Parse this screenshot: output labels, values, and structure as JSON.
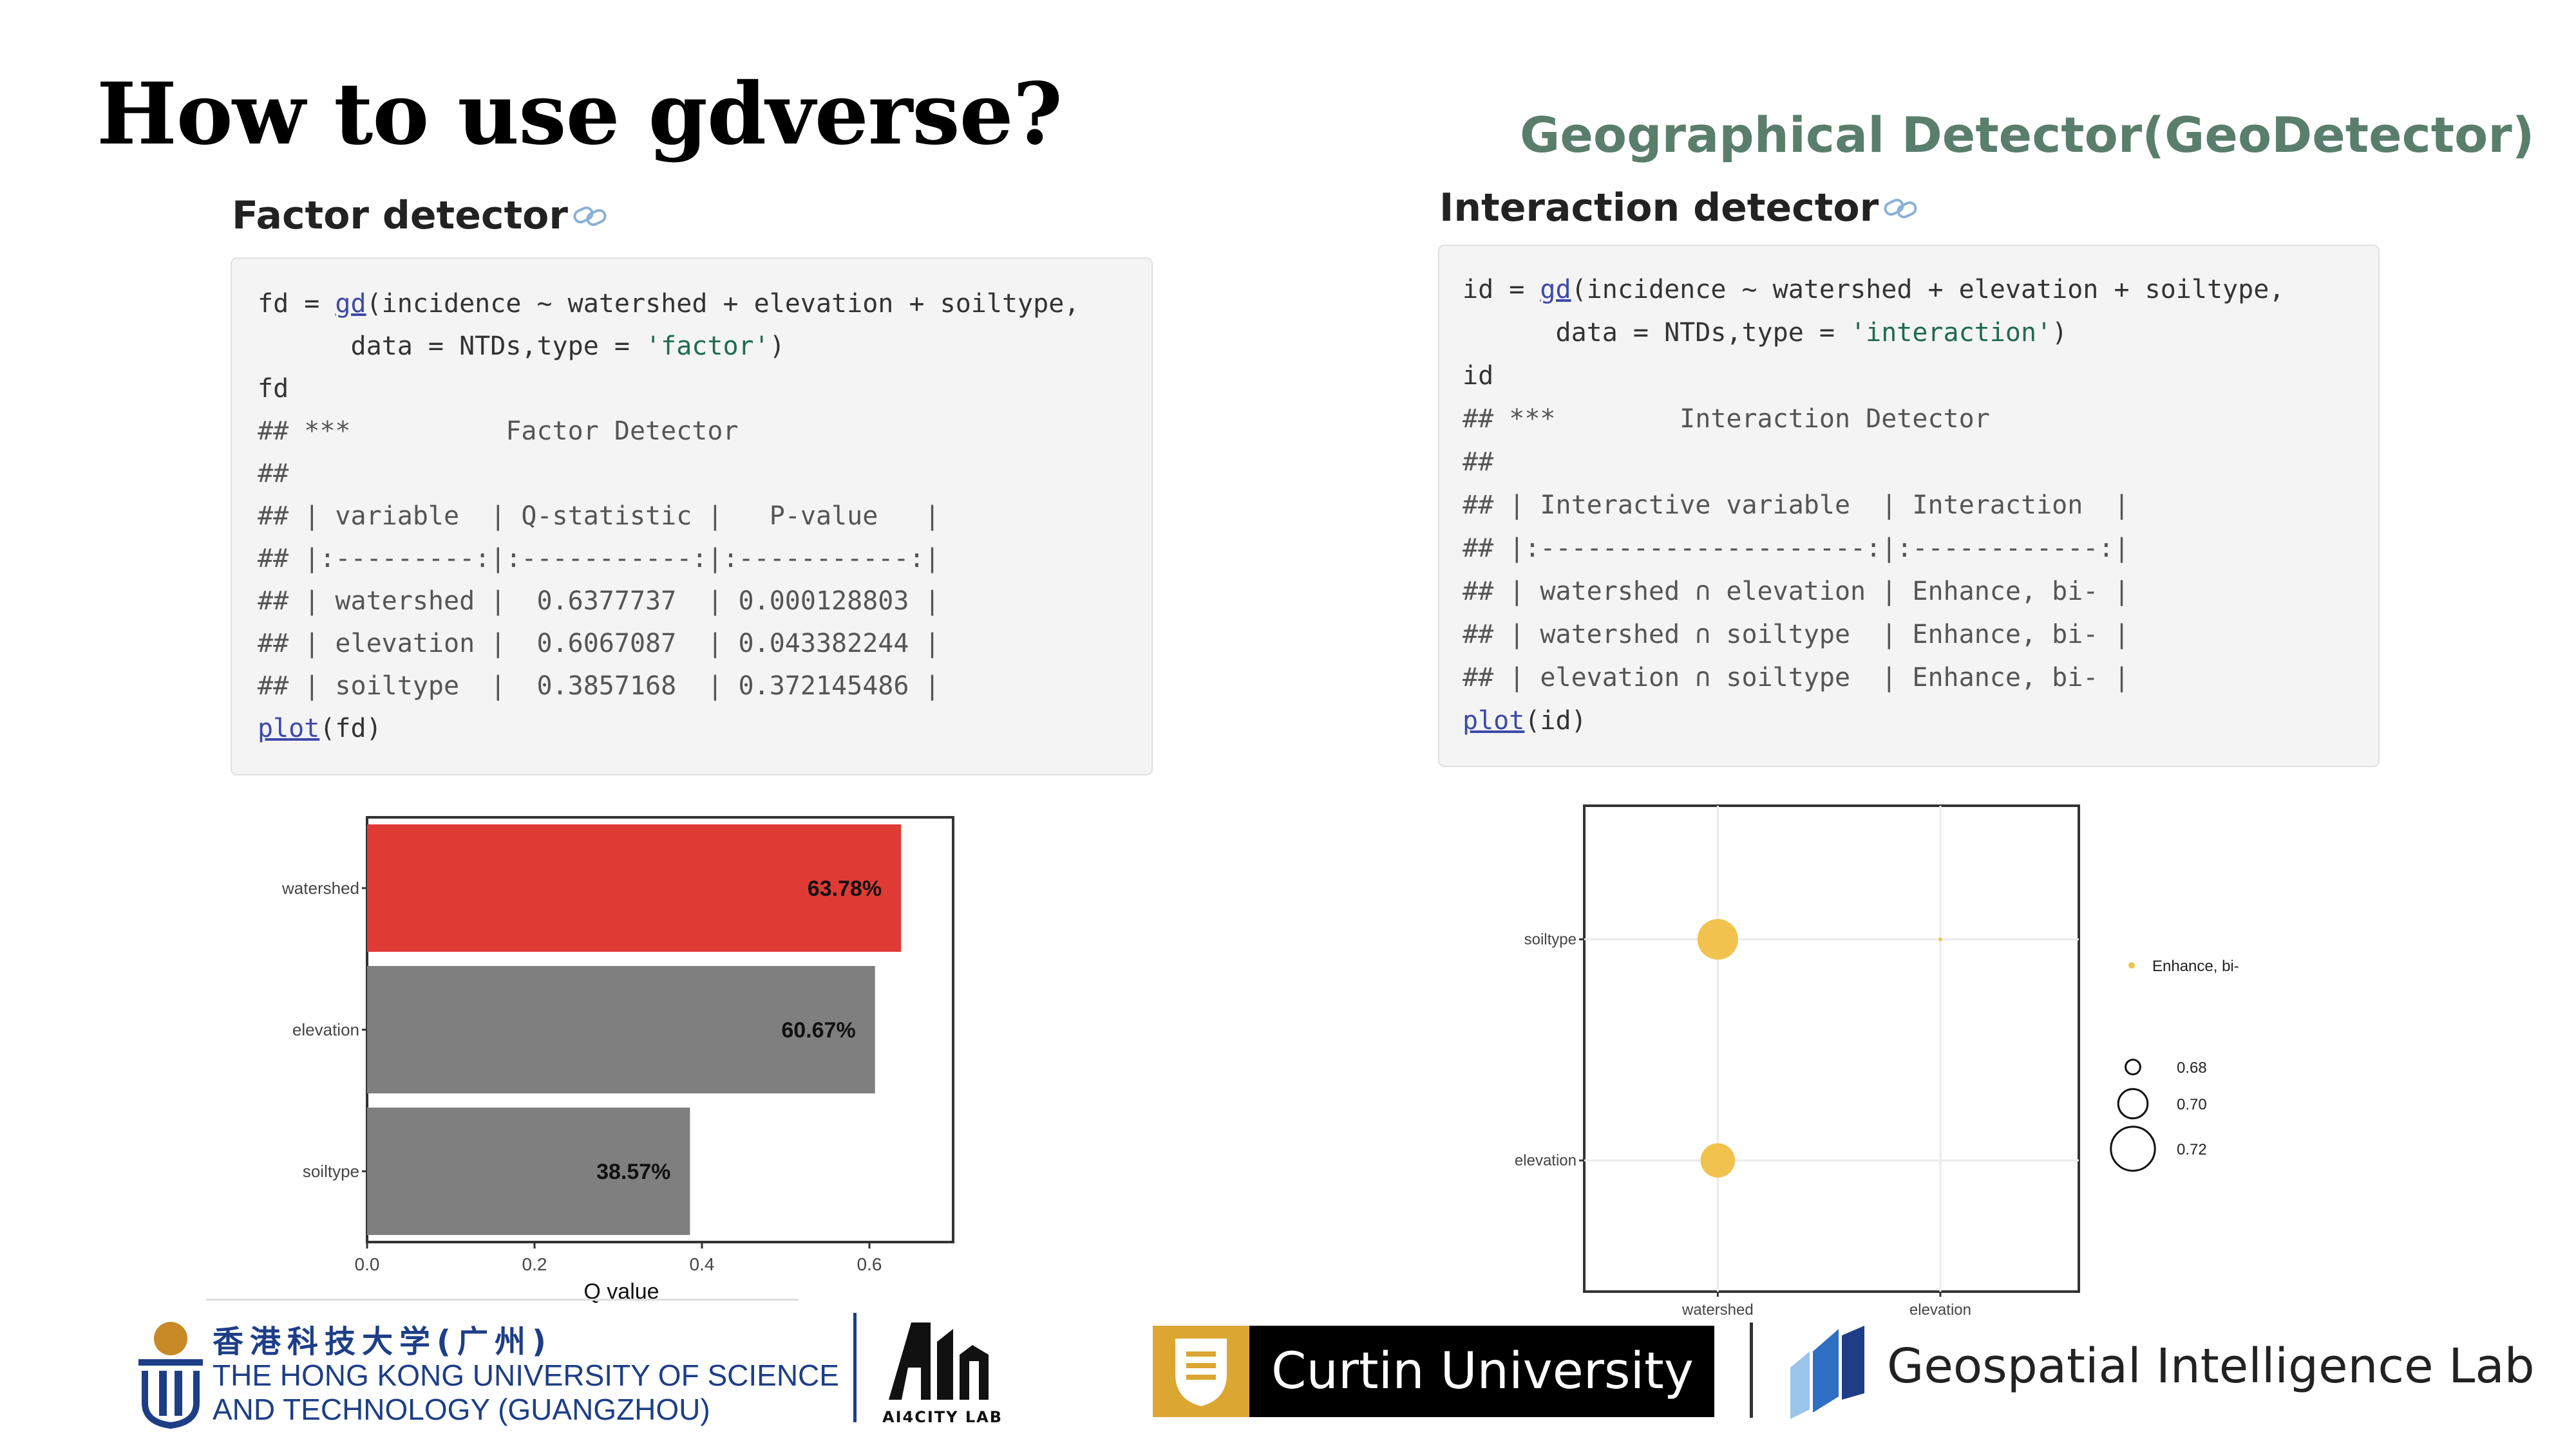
{
  "slide": {
    "title": "How to use gdverse?",
    "right_title": "Geographical Detector(GeoDetector)"
  },
  "factor_section": {
    "heading": "Factor detector",
    "code": {
      "l1": {
        "var": "fd",
        "op": " = ",
        "fn": "gd",
        "rest": "(incidence ~ watershed + elevation + soiltype,"
      },
      "l2": {
        "pre": "      data = NTDs,type = ",
        "str": "'factor'",
        "post": ")"
      },
      "l3": "fd",
      "l4": "## ***          Factor Detector",
      "l5": "##",
      "l6": "## | variable  | Q-statistic |   P-value   |",
      "l7": "## |:---------:|:-----------:|:-----------:|",
      "l8": "## | watershed |  0.6377737  | 0.000128803 |",
      "l9": "## | elevation |  0.6067087  | 0.043382244 |",
      "l10": "## | soiltype  |  0.3857168  | 0.372145486 |",
      "l11": {
        "fn": "plot",
        "rest": "(fd)"
      }
    }
  },
  "interaction_section": {
    "heading": "Interaction detector",
    "code": {
      "l1": {
        "var": "id",
        "op": " = ",
        "fn": "gd",
        "rest": "(incidence ~ watershed + elevation + soiltype,"
      },
      "l2": {
        "pre": "      data = NTDs,type = ",
        "str": "'interaction'",
        "post": ")"
      },
      "l3": "id",
      "l4": "## ***        Interaction Detector",
      "l5": "##",
      "l6": "## | Interactive variable  | Interaction  |",
      "l7": "## |:---------------------:|:------------:|",
      "l8": "## | watershed ∩ elevation | Enhance, bi- |",
      "l9": "## | watershed ∩ soiltype  | Enhance, bi- |",
      "l10": "## | elevation ∩ soiltype  | Enhance, bi- |",
      "l11": {
        "fn": "plot",
        "rest": "(id)"
      }
    }
  },
  "chart_data": [
    {
      "type": "bar",
      "orientation": "horizontal",
      "categories": [
        "watershed",
        "elevation",
        "soiltype"
      ],
      "values": [
        0.6378,
        0.6067,
        0.3857
      ],
      "labels": [
        "63.78%",
        "60.67%",
        "38.57%"
      ],
      "colors": [
        "#e03a35",
        "#7f7f7f",
        "#7f7f7f"
      ],
      "xlabel": "Q value",
      "xticks": [
        "0.0",
        "0.2",
        "0.4",
        "0.6"
      ],
      "xlim": [
        0,
        0.7
      ]
    },
    {
      "type": "scatter",
      "x_categories": [
        "watershed",
        "elevation"
      ],
      "y_categories": [
        "soiltype",
        "elevation"
      ],
      "points": [
        {
          "x": "watershed",
          "y": "soiltype",
          "size": 0.7154,
          "color": "#f1c24d"
        },
        {
          "x": "elevation",
          "y": "soiltype",
          "size": 0.66,
          "color": "#f1c24d"
        },
        {
          "x": "watershed",
          "y": "elevation",
          "size": 0.7068,
          "color": "#f1c24d"
        }
      ],
      "legend_color_label": "Enhance, bi-",
      "size_legend": [
        "0.68",
        "0.70",
        "0.72"
      ],
      "grid": true
    }
  ],
  "logos": {
    "hkust_cn": "香港科技大学(广州)",
    "hkust_en1": "THE HONG KONG UNIVERSITY OF SCIENCE",
    "hkust_en2": "AND TECHNOLOGY (GUANGZHOU)",
    "ai4city_label": "AI4CITY LAB",
    "curtin": "Curtin University",
    "gil": "Geospatial Intelligence Lab"
  },
  "colors": {
    "title_green": "#5a7e6c",
    "bar_highlight": "#e03a35",
    "bar_default": "#7f7f7f",
    "point": "#f1c24d",
    "curtin_gold": "#dba632",
    "hkust_blue": "#1d3e87"
  }
}
